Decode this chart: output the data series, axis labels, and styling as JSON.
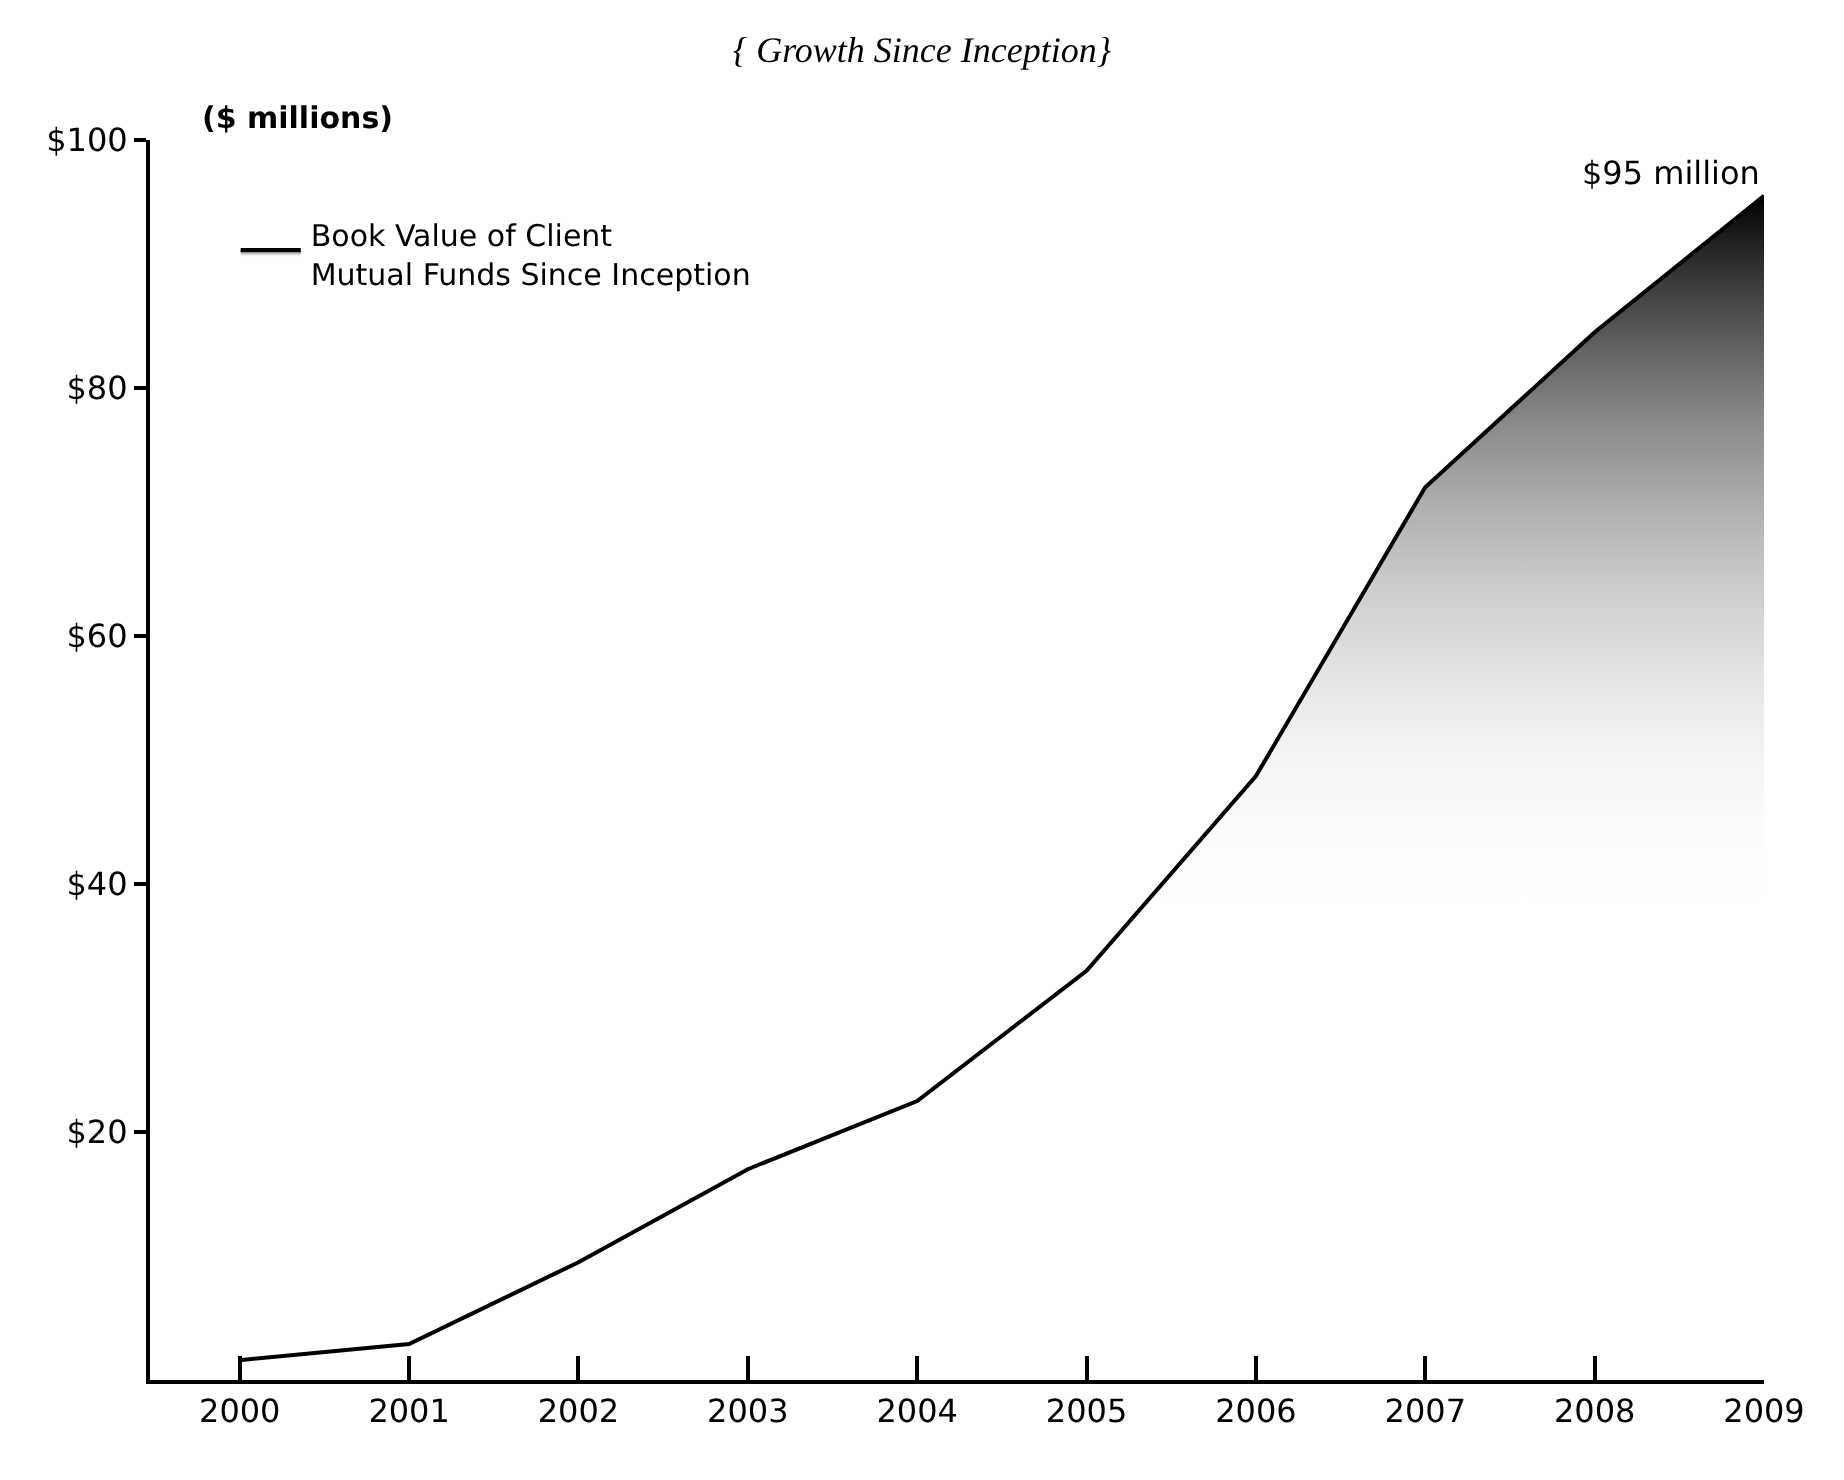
{
  "chart_data": {
    "type": "area",
    "title": "{ Growth Since Inception}",
    "x": [
      2000,
      2001,
      2002,
      2003,
      2004,
      2005,
      2006,
      2007,
      2008,
      2009
    ],
    "series": [
      {
        "name": "Book Value of Client Mutual Funds Since Inception",
        "color": "#000000",
        "values": [
          1.6,
          2.9,
          9.5,
          17,
          22.5,
          33,
          48.7,
          72,
          84.5,
          95.5
        ]
      }
    ],
    "xlim": [
      1999.47,
      2009
    ],
    "xticks": [
      2000,
      2001,
      2002,
      2003,
      2004,
      2005,
      2006,
      2007,
      2008,
      2009
    ],
    "ylim": [
      0,
      100
    ],
    "yticks": [
      {
        "value": 20,
        "label": "$20"
      },
      {
        "value": 40,
        "label": "$40"
      },
      {
        "value": 60,
        "label": "$60"
      },
      {
        "value": 80,
        "label": "$80"
      },
      {
        "value": 100,
        "label": "$100"
      }
    ],
    "annotations": [
      "($ millions)",
      {
        "text": "$95 million",
        "x": 2009,
        "y": 95.5
      }
    ],
    "legend": "top left",
    "marker": "none",
    "line_style": "solid"
  }
}
